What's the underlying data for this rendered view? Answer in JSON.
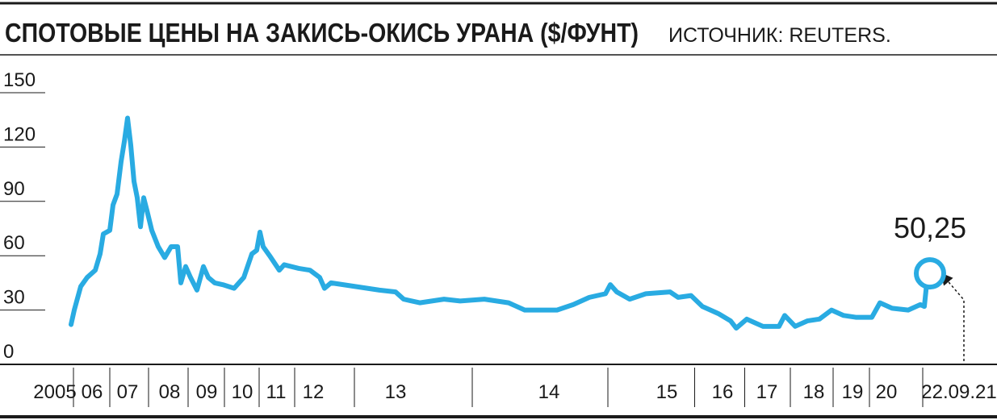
{
  "chart_data": {
    "type": "line",
    "title": "СПОТОВЫЕ ЦЕНЫ НА ЗАКИСЬ-ОКИСЬ УРАНА ($/ФУНТ)",
    "source": "ИСТОЧНИК: REUTERS.",
    "annotation": "50,25",
    "xlim": [
      0,
      1235
    ],
    "xticks": [
      {
        "value": 68,
        "label": "2005"
      },
      {
        "value": 114,
        "label": "06"
      },
      {
        "value": 158,
        "label": "07"
      },
      {
        "value": 210,
        "label": "08"
      },
      {
        "value": 256,
        "label": "09"
      },
      {
        "value": 300,
        "label": "10"
      },
      {
        "value": 342,
        "label": "11"
      },
      {
        "value": 388,
        "label": "12"
      },
      {
        "value": 490,
        "label": "13"
      },
      {
        "value": 680,
        "label": "14"
      },
      {
        "value": 826,
        "label": "15"
      },
      {
        "value": 895,
        "label": "16"
      },
      {
        "value": 950,
        "label": "17"
      },
      {
        "value": 1008,
        "label": "18"
      },
      {
        "value": 1056,
        "label": "19"
      },
      {
        "value": 1098,
        "label": "20"
      },
      {
        "value": 1188,
        "label": "22.09.21"
      }
    ],
    "ylim": [
      0,
      150
    ],
    "yticks": [
      0,
      30,
      60,
      90,
      120,
      150
    ],
    "color": "#29abe2",
    "x": [
      88,
      92,
      100,
      108,
      118,
      124,
      128,
      136,
      140,
      145,
      150,
      154,
      158,
      162,
      166,
      170,
      174,
      178,
      182,
      188,
      196,
      204,
      212,
      220,
      224,
      230,
      236,
      244,
      252,
      258,
      266,
      276,
      290,
      302,
      312,
      318,
      322,
      326,
      334,
      346,
      352,
      370,
      384,
      396,
      402,
      410,
      440,
      470,
      490,
      500,
      520,
      550,
      570,
      600,
      630,
      650,
      690,
      710,
      730,
      750,
      756,
      764,
      780,
      800,
      830,
      840,
      856,
      870,
      890,
      905,
      912,
      925,
      935,
      945,
      965,
      972,
      985,
      1000,
      1015,
      1030,
      1045,
      1060,
      1080,
      1090,
      1105,
      1125,
      1140,
      1145,
      1148,
      1152
    ],
    "values": [
      22,
      30,
      43,
      48,
      52,
      61,
      72,
      74,
      88,
      94,
      112,
      123,
      136,
      121,
      101,
      92,
      76,
      92,
      85,
      74,
      65,
      59,
      65,
      65,
      45,
      54,
      48,
      41,
      54,
      48,
      45,
      44,
      42,
      48,
      61,
      63,
      73,
      65,
      60,
      52,
      55,
      53,
      52,
      48,
      42,
      45,
      43,
      41,
      40,
      36,
      34,
      36,
      35,
      36,
      34,
      30,
      30,
      33,
      37,
      39,
      44,
      40,
      36,
      39,
      40,
      37,
      38,
      32,
      28,
      24,
      20,
      25,
      23,
      21,
      21,
      27,
      21,
      24,
      25,
      30,
      27,
      26,
      26,
      34,
      31,
      30,
      33,
      32,
      45,
      50.25
    ]
  }
}
